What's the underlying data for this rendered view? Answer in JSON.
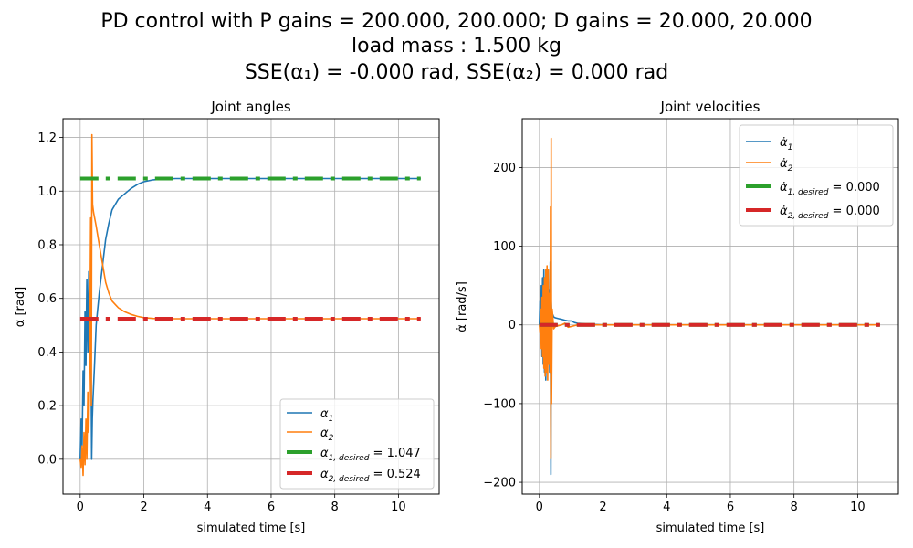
{
  "figure": {
    "title_line1": "PD control with P gains = 200.000, 200.000; D gains = 20.000, 20.000",
    "title_line2": "load mass : 1.500 kg",
    "title_line3_parts": [
      "SSE(α₁) = -0.000 rad, SSE(α₂) = 0.000 rad"
    ]
  },
  "chart_data": [
    {
      "type": "line",
      "title": "Joint angles",
      "xlabel": "simulated time [s]",
      "ylabel": "α [rad]",
      "xlim": [
        -0.54,
        11.28
      ],
      "ylim": [
        -0.13,
        1.27
      ],
      "xticks": [
        0,
        2,
        4,
        6,
        8,
        10
      ],
      "yticks": [
        0.0,
        0.2,
        0.4,
        0.6,
        0.8,
        1.0,
        1.2
      ],
      "ytick_labels": [
        "0.0",
        "0.2",
        "0.4",
        "0.6",
        "0.8",
        "1.0",
        "1.2"
      ],
      "grid": true,
      "legend_position": "lower-right",
      "series": [
        {
          "name": "α1",
          "color": "#1f77b4",
          "style": "solid",
          "x": [
            0.0,
            0.03,
            0.06,
            0.09,
            0.12,
            0.15,
            0.18,
            0.21,
            0.24,
            0.27,
            0.3,
            0.33,
            0.36,
            0.38,
            0.4,
            0.45,
            0.5,
            0.6,
            0.7,
            0.8,
            0.9,
            1.0,
            1.2,
            1.4,
            1.6,
            1.8,
            2.0,
            2.3,
            2.6,
            3.0,
            4.0,
            6.0,
            8.0,
            10.0,
            10.7
          ],
          "values": [
            0.0,
            0.15,
            0.05,
            0.33,
            0.2,
            0.55,
            0.35,
            0.67,
            0.4,
            0.7,
            0.5,
            0.6,
            0.0,
            0.15,
            0.22,
            0.35,
            0.5,
            0.62,
            0.72,
            0.82,
            0.88,
            0.93,
            0.97,
            0.99,
            1.01,
            1.025,
            1.035,
            1.042,
            1.045,
            1.047,
            1.047,
            1.047,
            1.047,
            1.047,
            1.047
          ]
        },
        {
          "name": "α2",
          "color": "#ff7f0e",
          "style": "solid",
          "x": [
            0.0,
            0.03,
            0.06,
            0.09,
            0.12,
            0.15,
            0.18,
            0.21,
            0.24,
            0.27,
            0.3,
            0.33,
            0.35,
            0.37,
            0.39,
            0.42,
            0.5,
            0.6,
            0.7,
            0.8,
            0.9,
            1.0,
            1.2,
            1.4,
            1.6,
            1.8,
            2.0,
            2.3,
            2.6,
            3.0,
            4.0,
            6.0,
            8.0,
            10.0,
            10.7
          ],
          "values": [
            0.0,
            -0.03,
            0.05,
            -0.06,
            0.1,
            -0.02,
            0.15,
            0.0,
            0.25,
            0.1,
            0.35,
            0.9,
            0.2,
            1.21,
            0.95,
            0.92,
            0.87,
            0.8,
            0.73,
            0.66,
            0.62,
            0.59,
            0.565,
            0.55,
            0.54,
            0.533,
            0.528,
            0.525,
            0.524,
            0.524,
            0.524,
            0.524,
            0.524,
            0.524,
            0.524
          ]
        },
        {
          "name": "α1,desired = 1.047",
          "color": "#2ca02c",
          "style": "dashdot",
          "x": [
            0.0,
            10.7
          ],
          "values": [
            1.047,
            1.047
          ]
        },
        {
          "name": "α2,desired = 0.524",
          "color": "#d62728",
          "style": "dashdot",
          "x": [
            0.0,
            10.7
          ],
          "values": [
            0.524,
            0.524
          ]
        }
      ],
      "legend_labels": {
        "l1_sym": "α",
        "l1_sub": "1",
        "l2_sym": "α",
        "l2_sub": "2",
        "l3_sym": "α",
        "l3_sub": "1, desired",
        "l3_val": " = 1.047",
        "l4_sym": "α",
        "l4_sub": "2, desired",
        "l4_val": " = 0.524"
      }
    },
    {
      "type": "line",
      "title": "Joint velocities",
      "xlabel": "simulated time [s]",
      "ylabel": "α̇ [rad/s]",
      "xlim": [
        -0.54,
        11.28
      ],
      "ylim": [
        -215,
        262
      ],
      "xticks": [
        0,
        2,
        4,
        6,
        8,
        10
      ],
      "yticks": [
        -200,
        -100,
        0,
        100,
        200
      ],
      "ytick_labels": [
        "−200",
        "−100",
        "0",
        "100",
        "200"
      ],
      "grid": true,
      "legend_position": "top-right",
      "series": [
        {
          "name": "α̇1",
          "color": "#1f77b4",
          "style": "solid",
          "x": [
            0.0,
            0.02,
            0.04,
            0.06,
            0.08,
            0.1,
            0.12,
            0.14,
            0.16,
            0.18,
            0.2,
            0.22,
            0.24,
            0.26,
            0.28,
            0.3,
            0.32,
            0.34,
            0.36,
            0.37,
            0.38,
            0.4,
            0.45,
            0.5,
            0.6,
            0.7,
            0.8,
            0.9,
            1.0,
            1.1,
            1.2,
            1.5,
            2.0,
            4.0,
            10.7
          ],
          "values": [
            0,
            30,
            -20,
            50,
            -40,
            60,
            -50,
            70,
            -60,
            60,
            -70,
            65,
            -55,
            50,
            -45,
            45,
            -60,
            80,
            -190,
            30,
            20,
            15,
            10,
            9,
            8,
            7,
            6,
            5,
            5,
            3,
            2,
            1,
            0,
            0,
            0
          ]
        },
        {
          "name": "α̇2",
          "color": "#ff7f0e",
          "style": "solid",
          "x": [
            0.0,
            0.02,
            0.04,
            0.06,
            0.08,
            0.1,
            0.12,
            0.14,
            0.16,
            0.18,
            0.2,
            0.22,
            0.24,
            0.26,
            0.28,
            0.3,
            0.32,
            0.34,
            0.35,
            0.36,
            0.37,
            0.38,
            0.4,
            0.45,
            0.5,
            0.6,
            0.7,
            0.8,
            0.9,
            1.0,
            1.2,
            2.0,
            4.0,
            10.7
          ],
          "values": [
            0,
            -10,
            20,
            -30,
            35,
            -40,
            50,
            -55,
            60,
            -65,
            70,
            -60,
            75,
            -70,
            70,
            -50,
            40,
            -60,
            150,
            -170,
            237,
            -100,
            20,
            -5,
            -2,
            -1,
            0,
            2,
            -3,
            -2,
            0,
            0,
            0,
            0
          ]
        },
        {
          "name": "α̇1,desired = 0.000",
          "color": "#2ca02c",
          "style": "dashdot",
          "x": [
            0.0,
            10.7
          ],
          "values": [
            0,
            0
          ]
        },
        {
          "name": "α̇2,desired = 0.000",
          "color": "#d62728",
          "style": "dashdot",
          "x": [
            0.0,
            10.7
          ],
          "values": [
            0,
            0
          ]
        }
      ],
      "legend_labels": {
        "l1_sym": "α̇",
        "l1_sub": "1",
        "l2_sym": "α̇",
        "l2_sub": "2",
        "l3_sym": "α̇",
        "l3_sub": "1, desired",
        "l3_val": " = 0.000",
        "l4_sym": "α̇",
        "l4_sub": "2, desired",
        "l4_val": " = 0.000"
      }
    }
  ]
}
